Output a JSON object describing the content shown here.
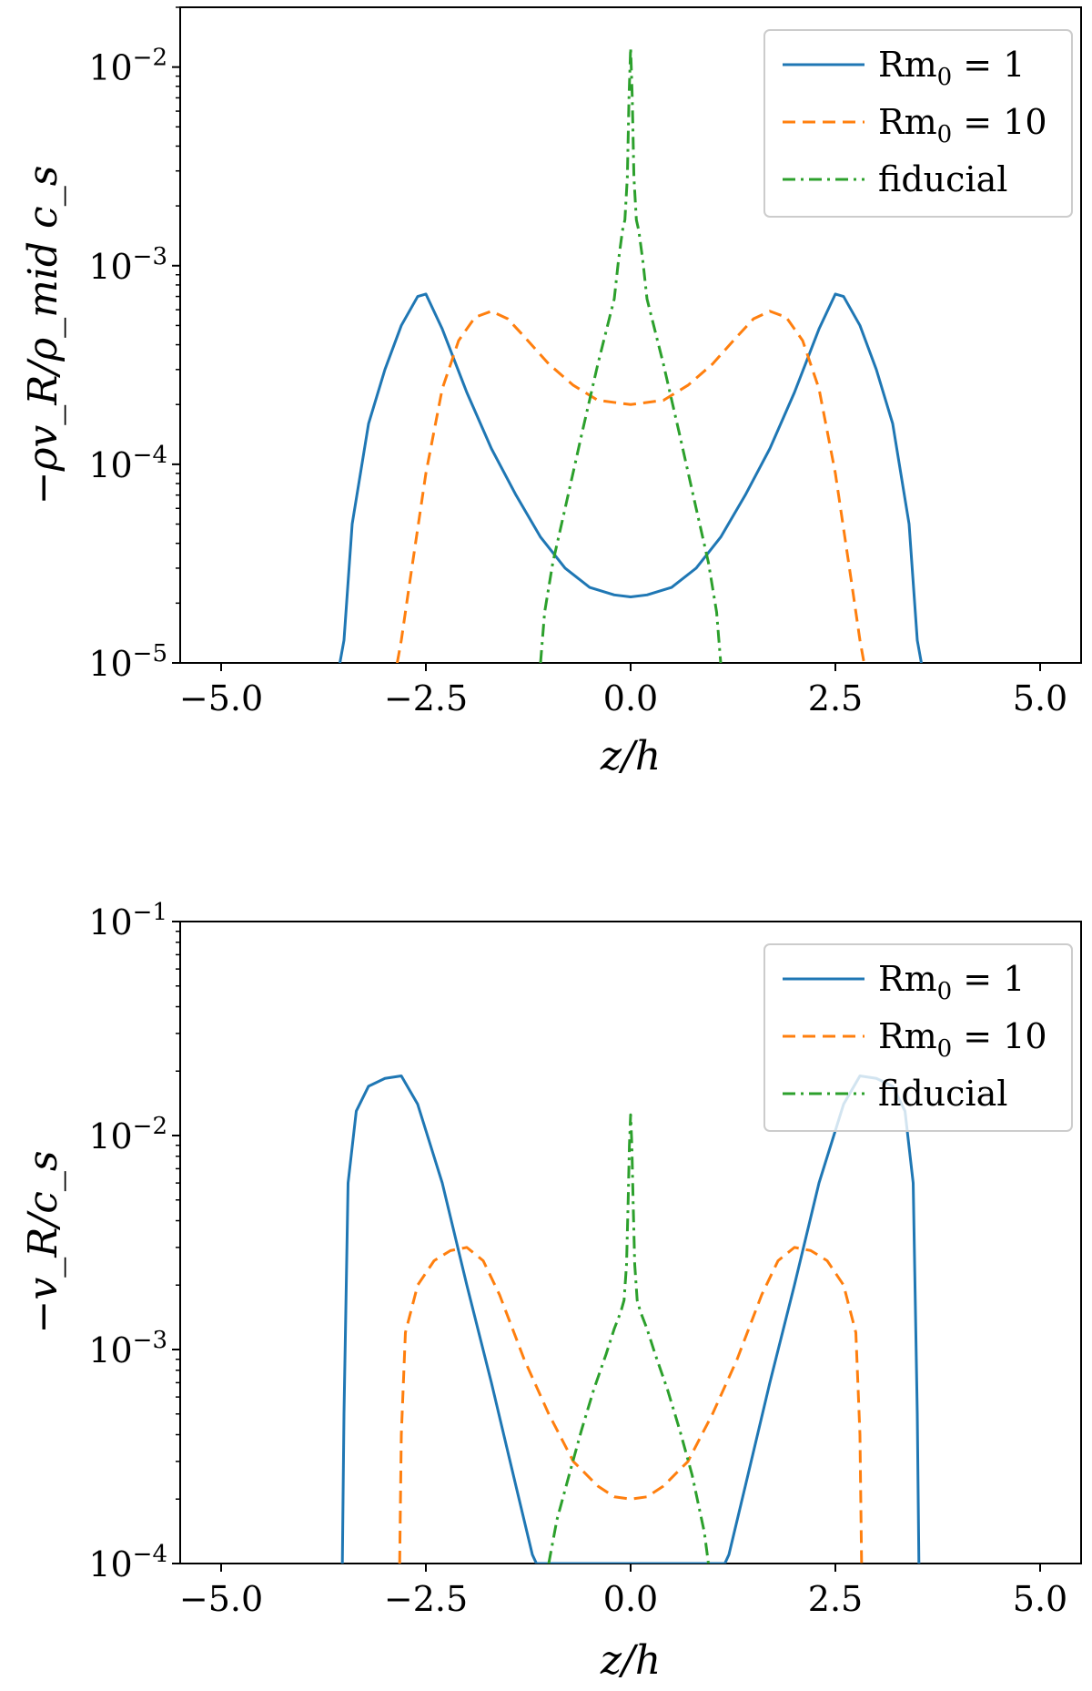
{
  "chart_data": [
    {
      "type": "line",
      "id": "top",
      "title": "",
      "xlabel": "z/h",
      "ylabel": "−ρv_R/ρ_mid c_s",
      "xlim": [
        -5.5,
        5.5
      ],
      "ylim": [
        1e-05,
        0.02
      ],
      "yscale": "log",
      "xticks": [
        -5.0,
        -2.5,
        0.0,
        2.5,
        5.0
      ],
      "xtick_labels": [
        "−5.0",
        "−2.5",
        "0.0",
        "2.5",
        "5.0"
      ],
      "yticks": [
        {
          "value": 1e-05,
          "base": "10",
          "exp": "−5"
        },
        {
          "value": 0.0001,
          "base": "10",
          "exp": "−4"
        },
        {
          "value": 0.001,
          "base": "10",
          "exp": "−3"
        },
        {
          "value": 0.01,
          "base": "10",
          "exp": "−2"
        }
      ],
      "legend_position": "top-right",
      "series": [
        {
          "name": "Rm₀ = 1",
          "legend_main": "Rm",
          "legend_sub": "0",
          "legend_rest": " = 1",
          "color": "#1f77b4",
          "dash": "solid",
          "x": [
            -3.55,
            -3.5,
            -3.4,
            -3.2,
            -3.0,
            -2.8,
            -2.6,
            -2.5,
            -2.3,
            -2.0,
            -1.7,
            -1.4,
            -1.1,
            -0.8,
            -0.5,
            -0.2,
            0.0,
            0.2,
            0.5,
            0.8,
            1.1,
            1.4,
            1.7,
            2.0,
            2.3,
            2.5,
            2.6,
            2.8,
            3.0,
            3.2,
            3.4,
            3.5,
            3.55
          ],
          "y": [
            1e-05,
            1.3e-05,
            5e-05,
            0.00016,
            0.0003,
            0.0005,
            0.0007,
            0.00072,
            0.00048,
            0.00023,
            0.00012,
            7e-05,
            4.3e-05,
            3e-05,
            2.4e-05,
            2.2e-05,
            2.15e-05,
            2.2e-05,
            2.4e-05,
            3e-05,
            4.3e-05,
            7e-05,
            0.00012,
            0.00023,
            0.00048,
            0.00072,
            0.0007,
            0.0005,
            0.0003,
            0.00016,
            5e-05,
            1.3e-05,
            1e-05
          ]
        },
        {
          "name": "Rm₀ = 10",
          "legend_main": "Rm",
          "legend_sub": "0",
          "legend_rest": " = 10",
          "color": "#ff7f0e",
          "dash": "dashed",
          "x": [
            -2.85,
            -2.8,
            -2.7,
            -2.5,
            -2.3,
            -2.1,
            -1.9,
            -1.7,
            -1.5,
            -1.3,
            -1.0,
            -0.7,
            -0.4,
            0.0,
            0.4,
            0.7,
            1.0,
            1.3,
            1.5,
            1.7,
            1.9,
            2.1,
            2.3,
            2.5,
            2.7,
            2.8,
            2.85
          ],
          "y": [
            1e-05,
            1.3e-05,
            2.5e-05,
            9e-05,
            0.00024,
            0.00042,
            0.00055,
            0.00059,
            0.00054,
            0.00044,
            0.00032,
            0.00025,
            0.00021,
            0.0002,
            0.00021,
            0.00025,
            0.00032,
            0.00044,
            0.00054,
            0.00059,
            0.00055,
            0.00042,
            0.00024,
            9e-05,
            2.5e-05,
            1.3e-05,
            1e-05
          ]
        },
        {
          "name": "fiducial",
          "legend_main": "fiducial",
          "legend_sub": "",
          "legend_rest": "",
          "color": "#2ca02c",
          "dash": "dashdot",
          "x": [
            -1.1,
            -1.05,
            -0.95,
            -0.8,
            -0.6,
            -0.4,
            -0.2,
            -0.15,
            -0.1,
            -0.07,
            -0.04,
            -0.02,
            0.0,
            0.02,
            0.04,
            0.07,
            0.1,
            0.15,
            0.2,
            0.4,
            0.6,
            0.8,
            0.95,
            1.05,
            1.1
          ],
          "y": [
            1e-05,
            1.8e-05,
            3.2e-05,
            6e-05,
            0.00014,
            0.00032,
            0.00068,
            0.00105,
            0.0015,
            0.0017,
            0.0028,
            0.007,
            0.0125,
            0.007,
            0.0028,
            0.0017,
            0.0015,
            0.00105,
            0.00068,
            0.00032,
            0.00014,
            6e-05,
            3.2e-05,
            1.8e-05,
            1e-05
          ]
        }
      ]
    },
    {
      "type": "line",
      "id": "bottom",
      "title": "",
      "xlabel": "z/h",
      "ylabel": "−v_R/c_s",
      "xlim": [
        -5.5,
        5.5
      ],
      "ylim": [
        0.0001,
        0.1
      ],
      "yscale": "log",
      "xticks": [
        -5.0,
        -2.5,
        0.0,
        2.5,
        5.0
      ],
      "xtick_labels": [
        "−5.0",
        "−2.5",
        "0.0",
        "2.5",
        "5.0"
      ],
      "yticks": [
        {
          "value": 0.0001,
          "base": "10",
          "exp": "−4"
        },
        {
          "value": 0.001,
          "base": "10",
          "exp": "−3"
        },
        {
          "value": 0.01,
          "base": "10",
          "exp": "−2"
        },
        {
          "value": 0.1,
          "base": "10",
          "exp": "−1"
        }
      ],
      "legend_position": "top-right",
      "series": [
        {
          "name": "Rm₀ = 1",
          "legend_main": "Rm",
          "legend_sub": "0",
          "legend_rest": " = 1",
          "color": "#1f77b4",
          "dash": "solid",
          "x": [
            -3.52,
            -3.5,
            -3.45,
            -3.35,
            -3.2,
            -3.0,
            -2.8,
            -2.6,
            -2.3,
            -2.0,
            -1.7,
            -1.4,
            -1.2,
            -1.15,
            1.15,
            1.2,
            1.4,
            1.7,
            2.0,
            2.3,
            2.6,
            2.8,
            3.0,
            3.2,
            3.35,
            3.45,
            3.5,
            3.52
          ],
          "y": [
            0.0001,
            0.0005,
            0.006,
            0.013,
            0.017,
            0.0185,
            0.019,
            0.014,
            0.006,
            0.002,
            0.0007,
            0.00023,
            0.00011,
            0.0001,
            0.0001,
            0.00011,
            0.00023,
            0.0007,
            0.002,
            0.006,
            0.014,
            0.019,
            0.0185,
            0.017,
            0.013,
            0.006,
            0.0005,
            0.0001
          ]
        },
        {
          "name": "Rm₀ = 10",
          "legend_main": "Rm",
          "legend_sub": "0",
          "legend_rest": " = 10",
          "color": "#ff7f0e",
          "dash": "dashed",
          "x": [
            -2.82,
            -2.8,
            -2.75,
            -2.6,
            -2.4,
            -2.2,
            -2.0,
            -1.8,
            -1.6,
            -1.3,
            -1.0,
            -0.7,
            -0.4,
            -0.2,
            0.0,
            0.2,
            0.4,
            0.7,
            1.0,
            1.3,
            1.6,
            1.8,
            2.0,
            2.2,
            2.4,
            2.6,
            2.75,
            2.8,
            2.82
          ],
          "y": [
            0.0001,
            0.0004,
            0.0012,
            0.002,
            0.0026,
            0.0029,
            0.003,
            0.0026,
            0.0018,
            0.0009,
            0.0005,
            0.0003,
            0.00023,
            0.000205,
            0.0002,
            0.000205,
            0.00023,
            0.0003,
            0.0005,
            0.0009,
            0.0018,
            0.0026,
            0.003,
            0.0029,
            0.0026,
            0.002,
            0.0012,
            0.0004,
            0.0001
          ]
        },
        {
          "name": "fiducial",
          "legend_main": "fiducial",
          "legend_sub": "",
          "legend_rest": "",
          "color": "#2ca02c",
          "dash": "dashdot",
          "x": [
            -1.0,
            -0.9,
            -0.75,
            -0.6,
            -0.45,
            -0.3,
            -0.2,
            -0.12,
            -0.08,
            -0.05,
            -0.03,
            -0.015,
            0.0,
            0.015,
            0.03,
            0.05,
            0.08,
            0.12,
            0.2,
            0.3,
            0.45,
            0.6,
            0.75,
            0.9,
            0.95
          ],
          "y": [
            0.0001,
            0.00016,
            0.00026,
            0.00042,
            0.00065,
            0.00095,
            0.00125,
            0.0015,
            0.0017,
            0.0025,
            0.005,
            0.009,
            0.0125,
            0.009,
            0.005,
            0.0025,
            0.0017,
            0.0015,
            0.00125,
            0.00095,
            0.00065,
            0.00042,
            0.00026,
            0.00014,
            0.0001
          ]
        }
      ]
    }
  ]
}
